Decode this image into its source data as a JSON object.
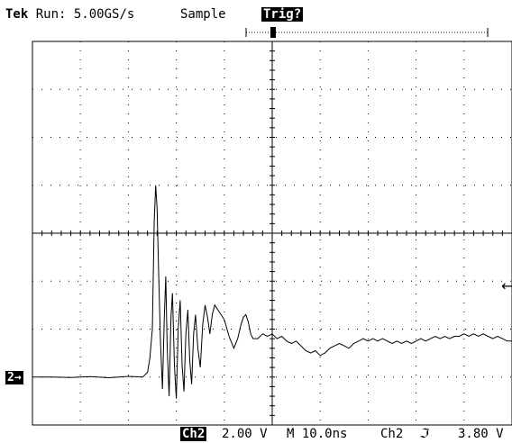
{
  "header": {
    "brand": "Tek",
    "run_status": "Run: 5.00GS/s",
    "mode": "Sample",
    "trigger_state": "Trig?"
  },
  "footer": {
    "channel": "Ch2",
    "volts_per_div": "2.00 V",
    "timebase": "M 10.0ns",
    "trigger_source": "Ch2",
    "trigger_slope_symbol": "ℑ",
    "trigger_level": "3.80 V"
  },
  "channel_marker": "2→",
  "trigger_level_marker": "←",
  "chart_data": {
    "type": "line",
    "title": "",
    "xlabel": "",
    "ylabel": "",
    "grid": true,
    "x_divisions": 10,
    "y_divisions": 8,
    "xlim": [
      -50,
      50
    ],
    "ylim": [
      -8,
      8
    ],
    "x_unit": "ns",
    "y_unit": "V",
    "trigger_position_ns": 0,
    "trigger_level_v": 3.8,
    "series": [
      {
        "name": "",
        "points": [
          [
            -50,
            -6.0
          ],
          [
            -46,
            -6.0
          ],
          [
            -42,
            -6.02
          ],
          [
            -38,
            -5.98
          ],
          [
            -34,
            -6.03
          ],
          [
            -30,
            -5.97
          ],
          [
            -27,
            -6.0
          ],
          [
            -26,
            -5.8
          ],
          [
            -25.5,
            -5.2
          ],
          [
            -25,
            -4.0
          ],
          [
            -24.6,
            0.5
          ],
          [
            -24.3,
            2.0
          ],
          [
            -24.0,
            1.0
          ],
          [
            -23.7,
            -1.5
          ],
          [
            -23.3,
            -4.5
          ],
          [
            -22.9,
            -6.5
          ],
          [
            -22.5,
            -3.5
          ],
          [
            -22.2,
            -1.8
          ],
          [
            -21.9,
            -4.8
          ],
          [
            -21.5,
            -6.8
          ],
          [
            -21.1,
            -3.5
          ],
          [
            -20.8,
            -2.5
          ],
          [
            -20.4,
            -5.5
          ],
          [
            -20.0,
            -6.9
          ],
          [
            -19.6,
            -4.0
          ],
          [
            -19.2,
            -2.8
          ],
          [
            -18.8,
            -5.5
          ],
          [
            -18.4,
            -6.6
          ],
          [
            -18.0,
            -4.2
          ],
          [
            -17.6,
            -3.2
          ],
          [
            -17.2,
            -5.3
          ],
          [
            -16.8,
            -6.3
          ],
          [
            -16.4,
            -4.2
          ],
          [
            -16.0,
            -3.4
          ],
          [
            -15.5,
            -4.8
          ],
          [
            -15.0,
            -5.6
          ],
          [
            -14.5,
            -3.8
          ],
          [
            -14.0,
            -3.0
          ],
          [
            -13.5,
            -3.5
          ],
          [
            -13.0,
            -4.2
          ],
          [
            -12.5,
            -3.4
          ],
          [
            -12.0,
            -3.0
          ],
          [
            -11.0,
            -3.3
          ],
          [
            -10.0,
            -3.6
          ],
          [
            -9.0,
            -4.3
          ],
          [
            -8.0,
            -4.8
          ],
          [
            -7.2,
            -4.4
          ],
          [
            -6.5,
            -3.8
          ],
          [
            -6.0,
            -3.5
          ],
          [
            -5.5,
            -3.4
          ],
          [
            -5.0,
            -3.7
          ],
          [
            -4.5,
            -4.2
          ],
          [
            -4.0,
            -4.4
          ],
          [
            -3.0,
            -4.4
          ],
          [
            -2.0,
            -4.2
          ],
          [
            -1.0,
            -4.3
          ],
          [
            0.0,
            -4.2
          ],
          [
            1.0,
            -4.4
          ],
          [
            2.0,
            -4.3
          ],
          [
            3.0,
            -4.5
          ],
          [
            4.0,
            -4.6
          ],
          [
            5.0,
            -4.5
          ],
          [
            6.0,
            -4.7
          ],
          [
            7.0,
            -4.9
          ],
          [
            8.0,
            -5.0
          ],
          [
            9.0,
            -4.9
          ],
          [
            10.0,
            -5.1
          ],
          [
            11.0,
            -5.0
          ],
          [
            12.0,
            -4.8
          ],
          [
            13.0,
            -4.7
          ],
          [
            14.0,
            -4.6
          ],
          [
            15.0,
            -4.7
          ],
          [
            16.0,
            -4.8
          ],
          [
            17.0,
            -4.6
          ],
          [
            18.0,
            -4.5
          ],
          [
            19.0,
            -4.4
          ],
          [
            20.0,
            -4.5
          ],
          [
            21.0,
            -4.4
          ],
          [
            22.0,
            -4.5
          ],
          [
            23.0,
            -4.4
          ],
          [
            24.0,
            -4.5
          ],
          [
            25.0,
            -4.6
          ],
          [
            26.0,
            -4.5
          ],
          [
            27.0,
            -4.6
          ],
          [
            28.0,
            -4.5
          ],
          [
            29.0,
            -4.6
          ],
          [
            30.0,
            -4.5
          ],
          [
            31.0,
            -4.4
          ],
          [
            32.0,
            -4.5
          ],
          [
            33.0,
            -4.4
          ],
          [
            34.0,
            -4.3
          ],
          [
            35.0,
            -4.4
          ],
          [
            36.0,
            -4.3
          ],
          [
            37.0,
            -4.4
          ],
          [
            38.0,
            -4.3
          ],
          [
            39.0,
            -4.3
          ],
          [
            40.0,
            -4.2
          ],
          [
            41.0,
            -4.3
          ],
          [
            42.0,
            -4.2
          ],
          [
            43.0,
            -4.3
          ],
          [
            44.0,
            -4.2
          ],
          [
            45.0,
            -4.3
          ],
          [
            46.0,
            -4.4
          ],
          [
            47.0,
            -4.3
          ],
          [
            48.0,
            -4.4
          ],
          [
            49.0,
            -4.5
          ],
          [
            50.0,
            -4.5
          ]
        ]
      }
    ]
  }
}
